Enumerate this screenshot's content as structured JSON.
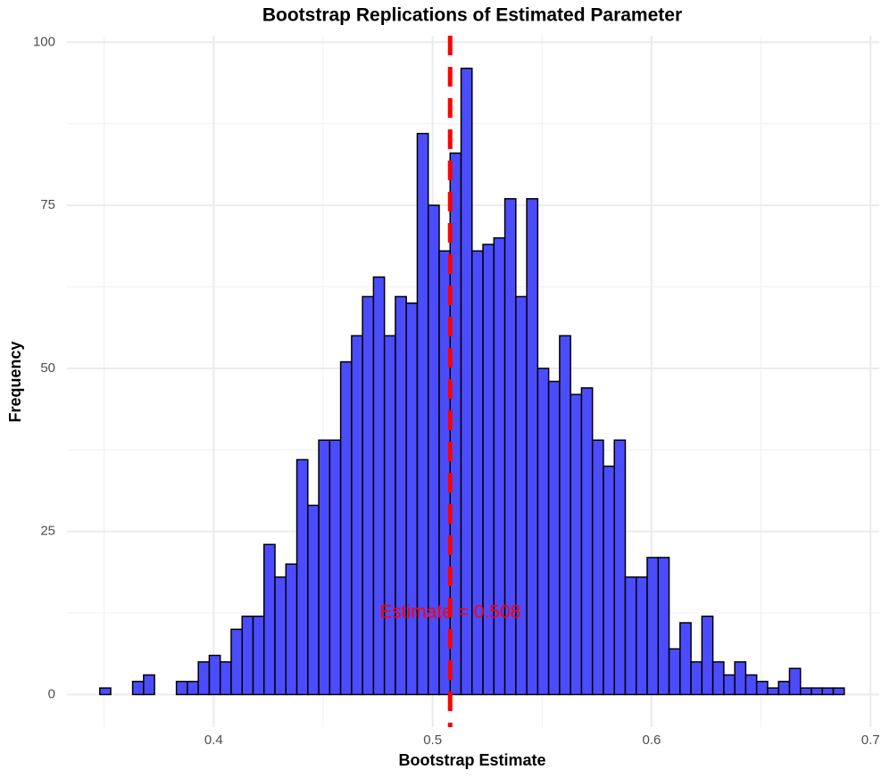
{
  "chart_data": {
    "type": "histogram",
    "title": "Bootstrap Replications of Estimated Parameter",
    "x_label": "Bootstrap Estimate",
    "y_label": "Frequency",
    "bins": [
      0.348,
      0.353,
      0.358,
      0.363,
      0.368,
      0.373,
      0.378,
      0.383,
      0.388,
      0.393,
      0.398,
      0.403,
      0.408,
      0.413,
      0.418,
      0.423,
      0.428,
      0.433,
      0.438,
      0.443,
      0.448,
      0.453,
      0.458,
      0.463,
      0.468,
      0.473,
      0.478,
      0.483,
      0.488,
      0.493,
      0.498,
      0.503,
      0.508,
      0.513,
      0.518,
      0.523,
      0.528,
      0.533,
      0.538,
      0.543,
      0.548,
      0.553,
      0.558,
      0.563,
      0.568,
      0.573,
      0.578,
      0.583,
      0.588,
      0.593,
      0.598,
      0.603,
      0.608,
      0.613,
      0.618,
      0.623,
      0.628,
      0.633,
      0.638,
      0.643,
      0.648,
      0.653,
      0.658,
      0.663,
      0.668,
      0.673,
      0.678,
      0.683,
      0.688
    ],
    "values": [
      1,
      0,
      0,
      2,
      3,
      0,
      0,
      2,
      2,
      5,
      6,
      5,
      10,
      12,
      12,
      23,
      18,
      20,
      36,
      29,
      39,
      39,
      51,
      55,
      61,
      64,
      55,
      61,
      60,
      86,
      75,
      68,
      83,
      96,
      68,
      69,
      70,
      76,
      61,
      76,
      50,
      48,
      55,
      46,
      47,
      39,
      35,
      39,
      18,
      18,
      21,
      21,
      7,
      11,
      5,
      12,
      5,
      3,
      5,
      3,
      2,
      1,
      2,
      4,
      1,
      1,
      1,
      1
    ],
    "color": "#4c4cff",
    "edge_color": "#000000",
    "xlim": [
      0.333,
      0.704
    ],
    "ylim": [
      -5,
      101
    ],
    "xticks": [
      0.4,
      0.5,
      0.6,
      0.7
    ],
    "yticks": [
      0,
      25,
      50,
      75,
      100
    ],
    "x_minor_grid": [
      0.35,
      0.45,
      0.55,
      0.65
    ],
    "y_minor_grid": [
      12.5,
      37.5,
      62.5,
      87.5
    ],
    "grid": true,
    "vline": {
      "x": 0.508,
      "color": "#ff0000"
    },
    "annotation": "Estimate = 0.508"
  }
}
